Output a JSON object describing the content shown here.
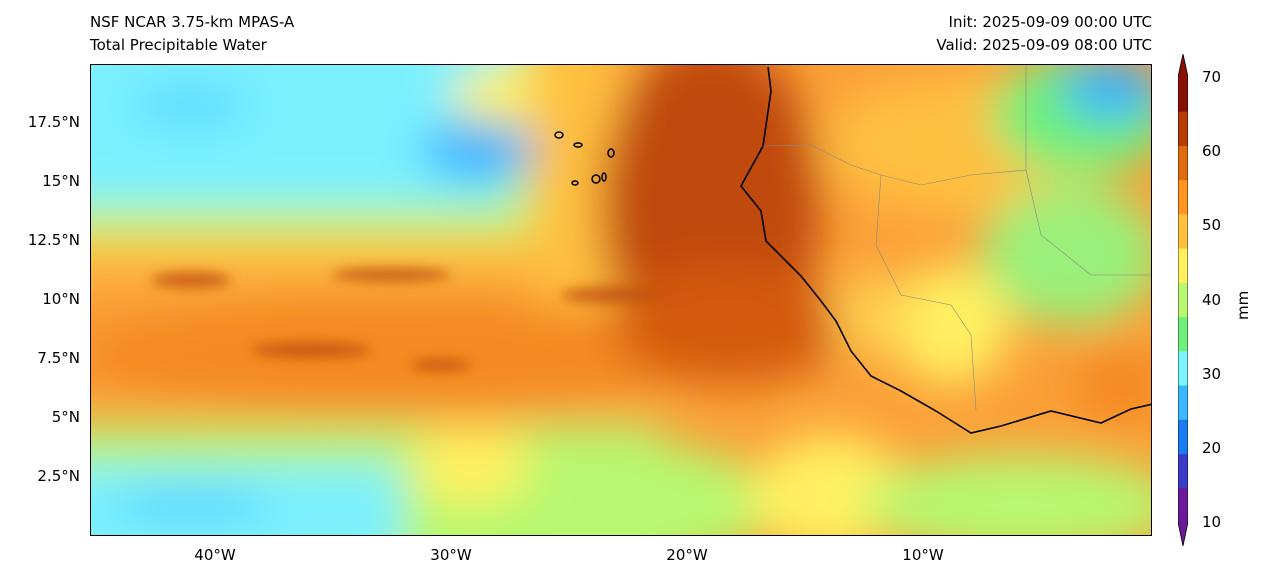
{
  "title_left": [
    "NSF NCAR 3.75-km MPAS-A",
    "Total Precipitable Water"
  ],
  "title_right": [
    "Init: 2025-09-09 00:00 UTC",
    "Valid: 2025-09-09 08:00 UTC"
  ],
  "lat_ticks": [
    "17.5°N",
    "15°N",
    "12.5°N",
    "10°N",
    "7.5°N",
    "5°N",
    "2.5°N"
  ],
  "lon_ticks": [
    "40°W",
    "30°W",
    "20°W",
    "10°W"
  ],
  "colorbar": {
    "label": "mm",
    "ticks": [
      "70",
      "60",
      "50",
      "40",
      "30",
      "20",
      "10"
    ],
    "min": 10,
    "max": 70,
    "colors": [
      "#6a1a9a",
      "#3a3cc8",
      "#1a7cf0",
      "#3ab8ff",
      "#7af4ff",
      "#6ef07a",
      "#b8f870",
      "#fff060",
      "#ffc040",
      "#ff9420",
      "#e06a10",
      "#b83c08",
      "#8a1004"
    ]
  }
}
